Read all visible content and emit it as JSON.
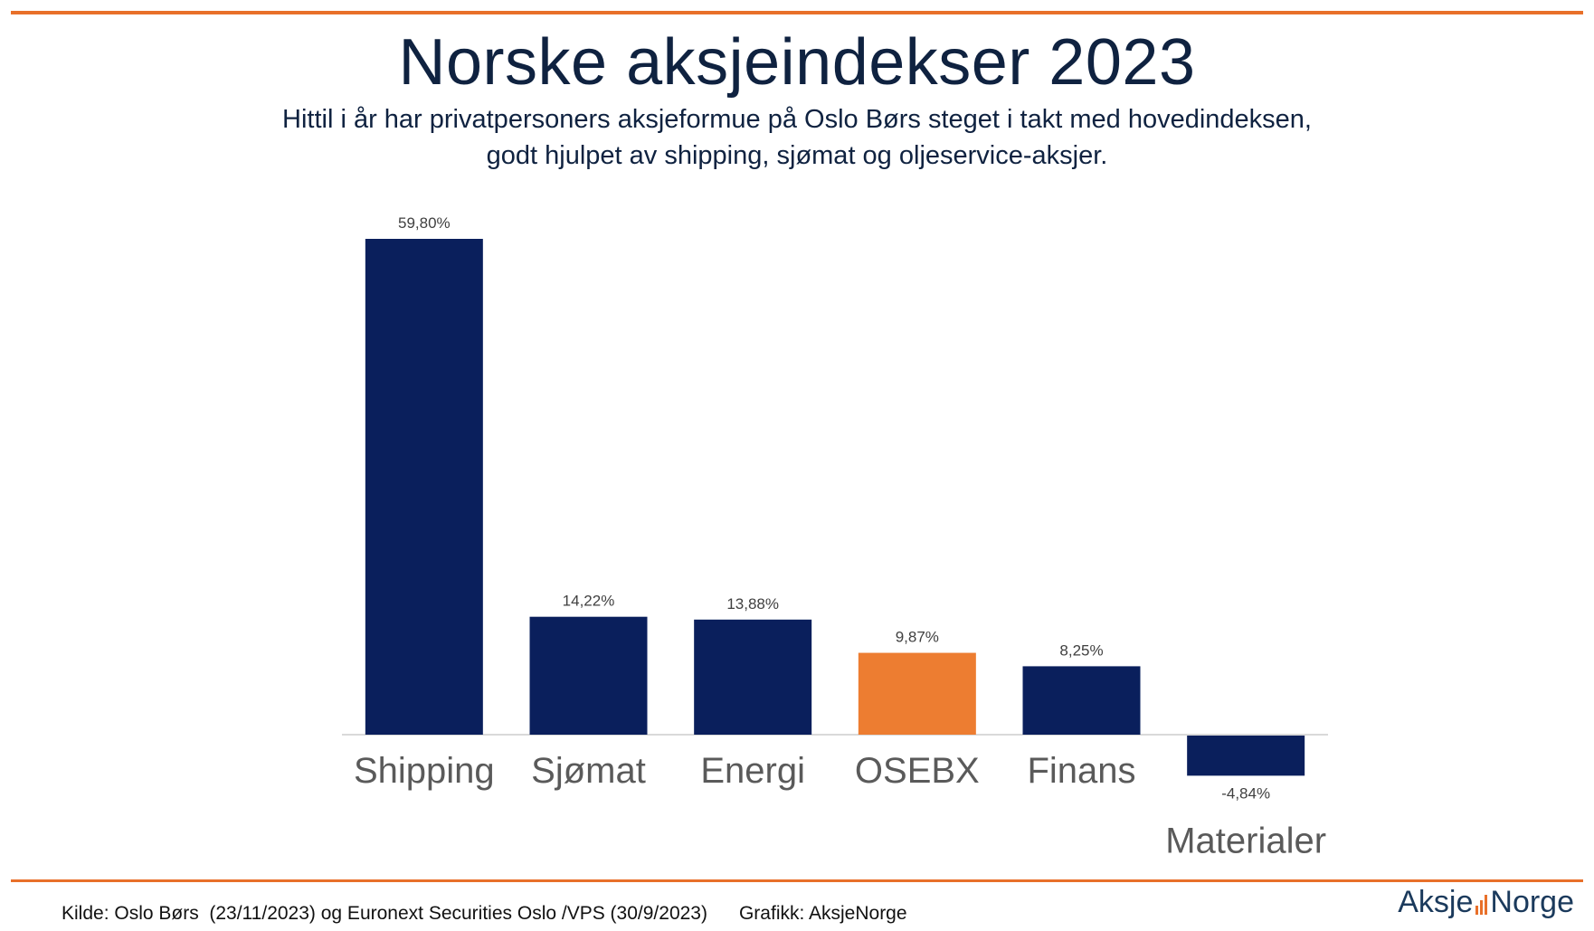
{
  "header": {
    "title": "Norske aksjeindekser 2023",
    "subtitle_line1": "Hittil i år har privatpersoners aksjeformue på Oslo Børs steget i takt med hovedindeksen,",
    "subtitle_line2": "godt hjulpet av shipping, sjømat og oljeservice-aksjer."
  },
  "colors": {
    "accent": "#e8702a",
    "bar": "#0a1f5c",
    "highlight_bar": "#ed7d31",
    "label": "#5a5a5a",
    "title": "#0f2240"
  },
  "chart_data": {
    "type": "bar",
    "title": "Norske aksjeindekser 2023",
    "categories": [
      "Shipping",
      "Sjømat",
      "Energi",
      "OSEBX",
      "Finans",
      "Materialer"
    ],
    "values": [
      59.8,
      14.22,
      13.88,
      9.87,
      8.25,
      -4.84
    ],
    "value_labels": [
      "59,80%",
      "14,22%",
      "13,88%",
      "9,87%",
      "8,25%",
      "-4,84%"
    ],
    "highlight_category": "OSEBX",
    "xlabel": "",
    "ylabel": "",
    "ylim": [
      -4.84,
      59.8
    ],
    "grid": false,
    "legend": "none"
  },
  "footer": {
    "source": "Kilde: Oslo Børs  (23/11/2023) og Euronext Securities Oslo /VPS (30/9/2023)      Grafikk: AksjeNorge",
    "logo_left": "Aksje",
    "logo_right": "Norge"
  }
}
